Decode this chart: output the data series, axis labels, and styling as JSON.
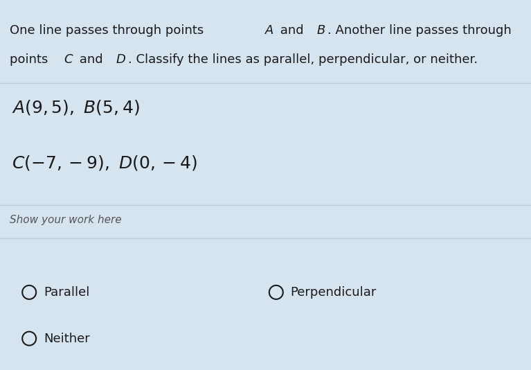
{
  "background_color": "#d6e4f0",
  "work_label": "Show your work here",
  "option1": "Parallel",
  "option2": "Perpendicular",
  "option3": "Neither",
  "divider_color": "#b8cdd8",
  "text_color": "#1a1a1a",
  "circle_color": "#1a1a1a",
  "font_size_body": 13,
  "font_size_points": 18,
  "font_size_work": 11,
  "font_size_options": 13
}
